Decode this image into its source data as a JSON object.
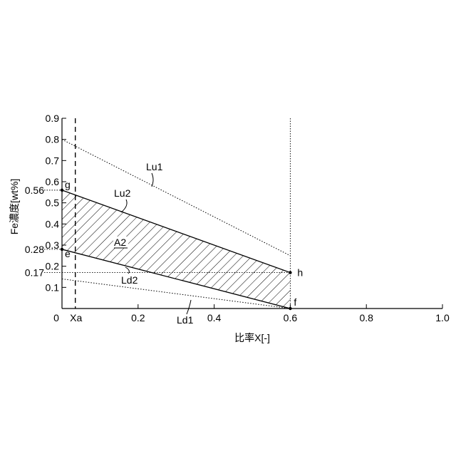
{
  "chart_data": {
    "type": "line",
    "xlabel": "比率X[-]",
    "ylabel": "Fe濃度[wt%]",
    "xlim": [
      0,
      1.0
    ],
    "ylim": [
      0,
      0.9
    ],
    "x_ticks": [
      "0",
      "0.2",
      "0.4",
      "0.6",
      "0.8",
      "1.0"
    ],
    "x_tick_values": [
      0,
      0.2,
      0.4,
      0.6,
      0.8,
      1.0
    ],
    "y_ticks": [
      "0.1",
      "0.2",
      "0.3",
      "0.4",
      "0.5",
      "0.6",
      "0.7",
      "0.8",
      "0.9"
    ],
    "y_tick_values": [
      0.1,
      0.2,
      0.3,
      0.4,
      0.5,
      0.6,
      0.7,
      0.8,
      0.9
    ],
    "extra_y_labels": [
      {
        "text": "0.56",
        "value": 0.56
      },
      {
        "text": "0.28",
        "value": 0.28
      },
      {
        "text": "0.17",
        "value": 0.17
      }
    ],
    "xa": {
      "label": "Xa",
      "value": 0.035
    },
    "series": [
      {
        "name": "Lu1",
        "x": [
          0,
          0.6
        ],
        "y": [
          0.8,
          0.25
        ],
        "style": "dotted"
      },
      {
        "name": "Lu2",
        "x": [
          0,
          0.6
        ],
        "y": [
          0.56,
          0.17
        ],
        "style": "solid"
      },
      {
        "name": "Ld2",
        "x": [
          0,
          0.6
        ],
        "y": [
          0.28,
          0.0
        ],
        "style": "solid"
      },
      {
        "name": "Ld1",
        "x": [
          0,
          0.6
        ],
        "y": [
          0.14,
          0.0
        ],
        "style": "dotted"
      }
    ],
    "region": {
      "label": "A2",
      "bounded_by": [
        "Lu2",
        "Ld2"
      ],
      "x_range": [
        0,
        0.6
      ],
      "pattern": "hatched"
    },
    "points": [
      {
        "label": "g",
        "x": 0,
        "y": 0.56
      },
      {
        "label": "e",
        "x": 0,
        "y": 0.28
      },
      {
        "label": "h",
        "x": 0.6,
        "y": 0.17
      },
      {
        "label": "f",
        "x": 0.6,
        "y": 0.0
      }
    ],
    "grid": false,
    "legend": "none"
  }
}
